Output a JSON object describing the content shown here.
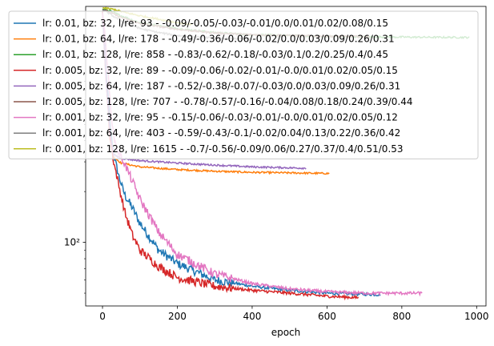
{
  "chart_data": {
    "type": "line",
    "title": "",
    "xlabel": "epoch",
    "ylabel": "",
    "xlim": [
      -45,
      1025
    ],
    "ylim": [
      42,
      2500
    ],
    "yscale": "log",
    "grid": false,
    "legend_position": "top-left",
    "x_ticks": [
      0,
      200,
      400,
      600,
      800,
      1000
    ],
    "x_tick_labels": [
      "0",
      "200",
      "400",
      "600",
      "800",
      "1000"
    ],
    "y_major_ticks": [
      100
    ],
    "y_major_tick_labels": [
      "10²"
    ],
    "series": [
      {
        "name": "lr: 0.01, bz: 32, l/re: 93 - -0.09/-0.05/-0.03/-0.01/0.0/0.01/0.02/0.08/0.15",
        "color": "#1f77b4",
        "x": [
          0,
          10,
          20,
          30,
          45,
          60,
          80,
          100,
          150,
          200,
          300,
          400,
          500,
          600,
          742
        ],
        "y": [
          2300,
          1000,
          500,
          330,
          240,
          190,
          160,
          130,
          90,
          75,
          60,
          55,
          52,
          50,
          49
        ]
      },
      {
        "name": "lr: 0.01, bz: 64, l/re: 178 - -0.49/-0.36/-0.06/-0.02/0.0/0.03/0.09/0.26/0.31",
        "color": "#ff7f0e",
        "x": [
          0,
          10,
          20,
          30,
          50,
          100,
          200,
          300,
          400,
          500,
          607
        ],
        "y": [
          2300,
          900,
          450,
          320,
          295,
          280,
          270,
          264,
          260,
          258,
          256
        ]
      },
      {
        "name": "lr: 0.01, bz: 128, l/re: 858 - -0.83/-0.62/-0.18/-0.03/0.1/0.2/0.25/0.4/0.45",
        "color": "#2ca02c",
        "x": [
          0,
          20,
          50,
          100,
          200,
          300,
          400,
          500,
          600,
          700,
          800,
          900,
          980
        ],
        "y": [
          2400,
          2350,
          2200,
          2000,
          1850,
          1750,
          1700,
          1680,
          1660,
          1650,
          1645,
          1640,
          1638
        ]
      },
      {
        "name": "lr: 0.005, bz: 32, l/re: 89 - -0.09/-0.06/-0.02/-0.01/-0.0/0.01/0.02/0.05/0.15",
        "color": "#d62728",
        "x": [
          0,
          10,
          20,
          30,
          45,
          60,
          80,
          100,
          150,
          200,
          300,
          400,
          500,
          600,
          685
        ],
        "y": [
          2300,
          900,
          420,
          300,
          210,
          150,
          110,
          90,
          72,
          62,
          55,
          52,
          50,
          48,
          47
        ]
      },
      {
        "name": "lr: 0.005, bz: 64, l/re: 187 - -0.52/-0.38/-0.07/-0.03/0.0/0.03/0.09/0.26/0.31",
        "color": "#9467bd",
        "x": [
          0,
          10,
          20,
          30,
          50,
          100,
          200,
          300,
          400,
          545
        ],
        "y": [
          2300,
          900,
          450,
          330,
          315,
          305,
          295,
          287,
          280,
          275
        ]
      },
      {
        "name": "lr: 0.005, bz: 128, l/re: 707 - -0.78/-0.57/-0.16/-0.04/0.08/0.18/0.24/0.39/0.44",
        "color": "#8c564b",
        "x": [
          0,
          20,
          50,
          100,
          200,
          300,
          400,
          500,
          600,
          712
        ],
        "y": [
          2400,
          2300,
          2150,
          1980,
          1830,
          1740,
          1700,
          1680,
          1665,
          1655
        ]
      },
      {
        "name": "lr: 0.001, bz: 32, l/re: 95 - -0.15/-0.06/-0.03/-0.01/-0.0/0.01/0.02/0.05/0.12",
        "color": "#e377c2",
        "x": [
          0,
          10,
          20,
          30,
          40,
          50,
          60,
          80,
          100,
          150,
          200,
          300,
          400,
          500,
          600,
          700,
          855
        ],
        "y": [
          2400,
          1400,
          700,
          420,
          350,
          320,
          290,
          230,
          180,
          115,
          85,
          65,
          57,
          53,
          51,
          50,
          50
        ]
      },
      {
        "name": "lr: 0.001, bz: 64, l/re: 403 - -0.59/-0.43/-0.1/-0.02/0.04/0.13/0.22/0.36/0.42",
        "color": "#7f7f7f",
        "x": [
          0,
          20,
          50,
          100,
          150,
          200,
          300,
          400
        ],
        "y": [
          2400,
          2250,
          2050,
          1850,
          1750,
          1680,
          1620,
          1600
        ]
      },
      {
        "name": "lr: 0.001, bz: 128, l/re: 1615 - -0.7/-0.56/-0.09/0.06/0.27/0.37/0.4/0.51/0.53",
        "color": "#bcbd22",
        "x": [
          0,
          30,
          60,
          100,
          150,
          200,
          240
        ],
        "y": [
          2450,
          2400,
          2300,
          2200,
          2100,
          2000,
          1950
        ]
      }
    ]
  }
}
